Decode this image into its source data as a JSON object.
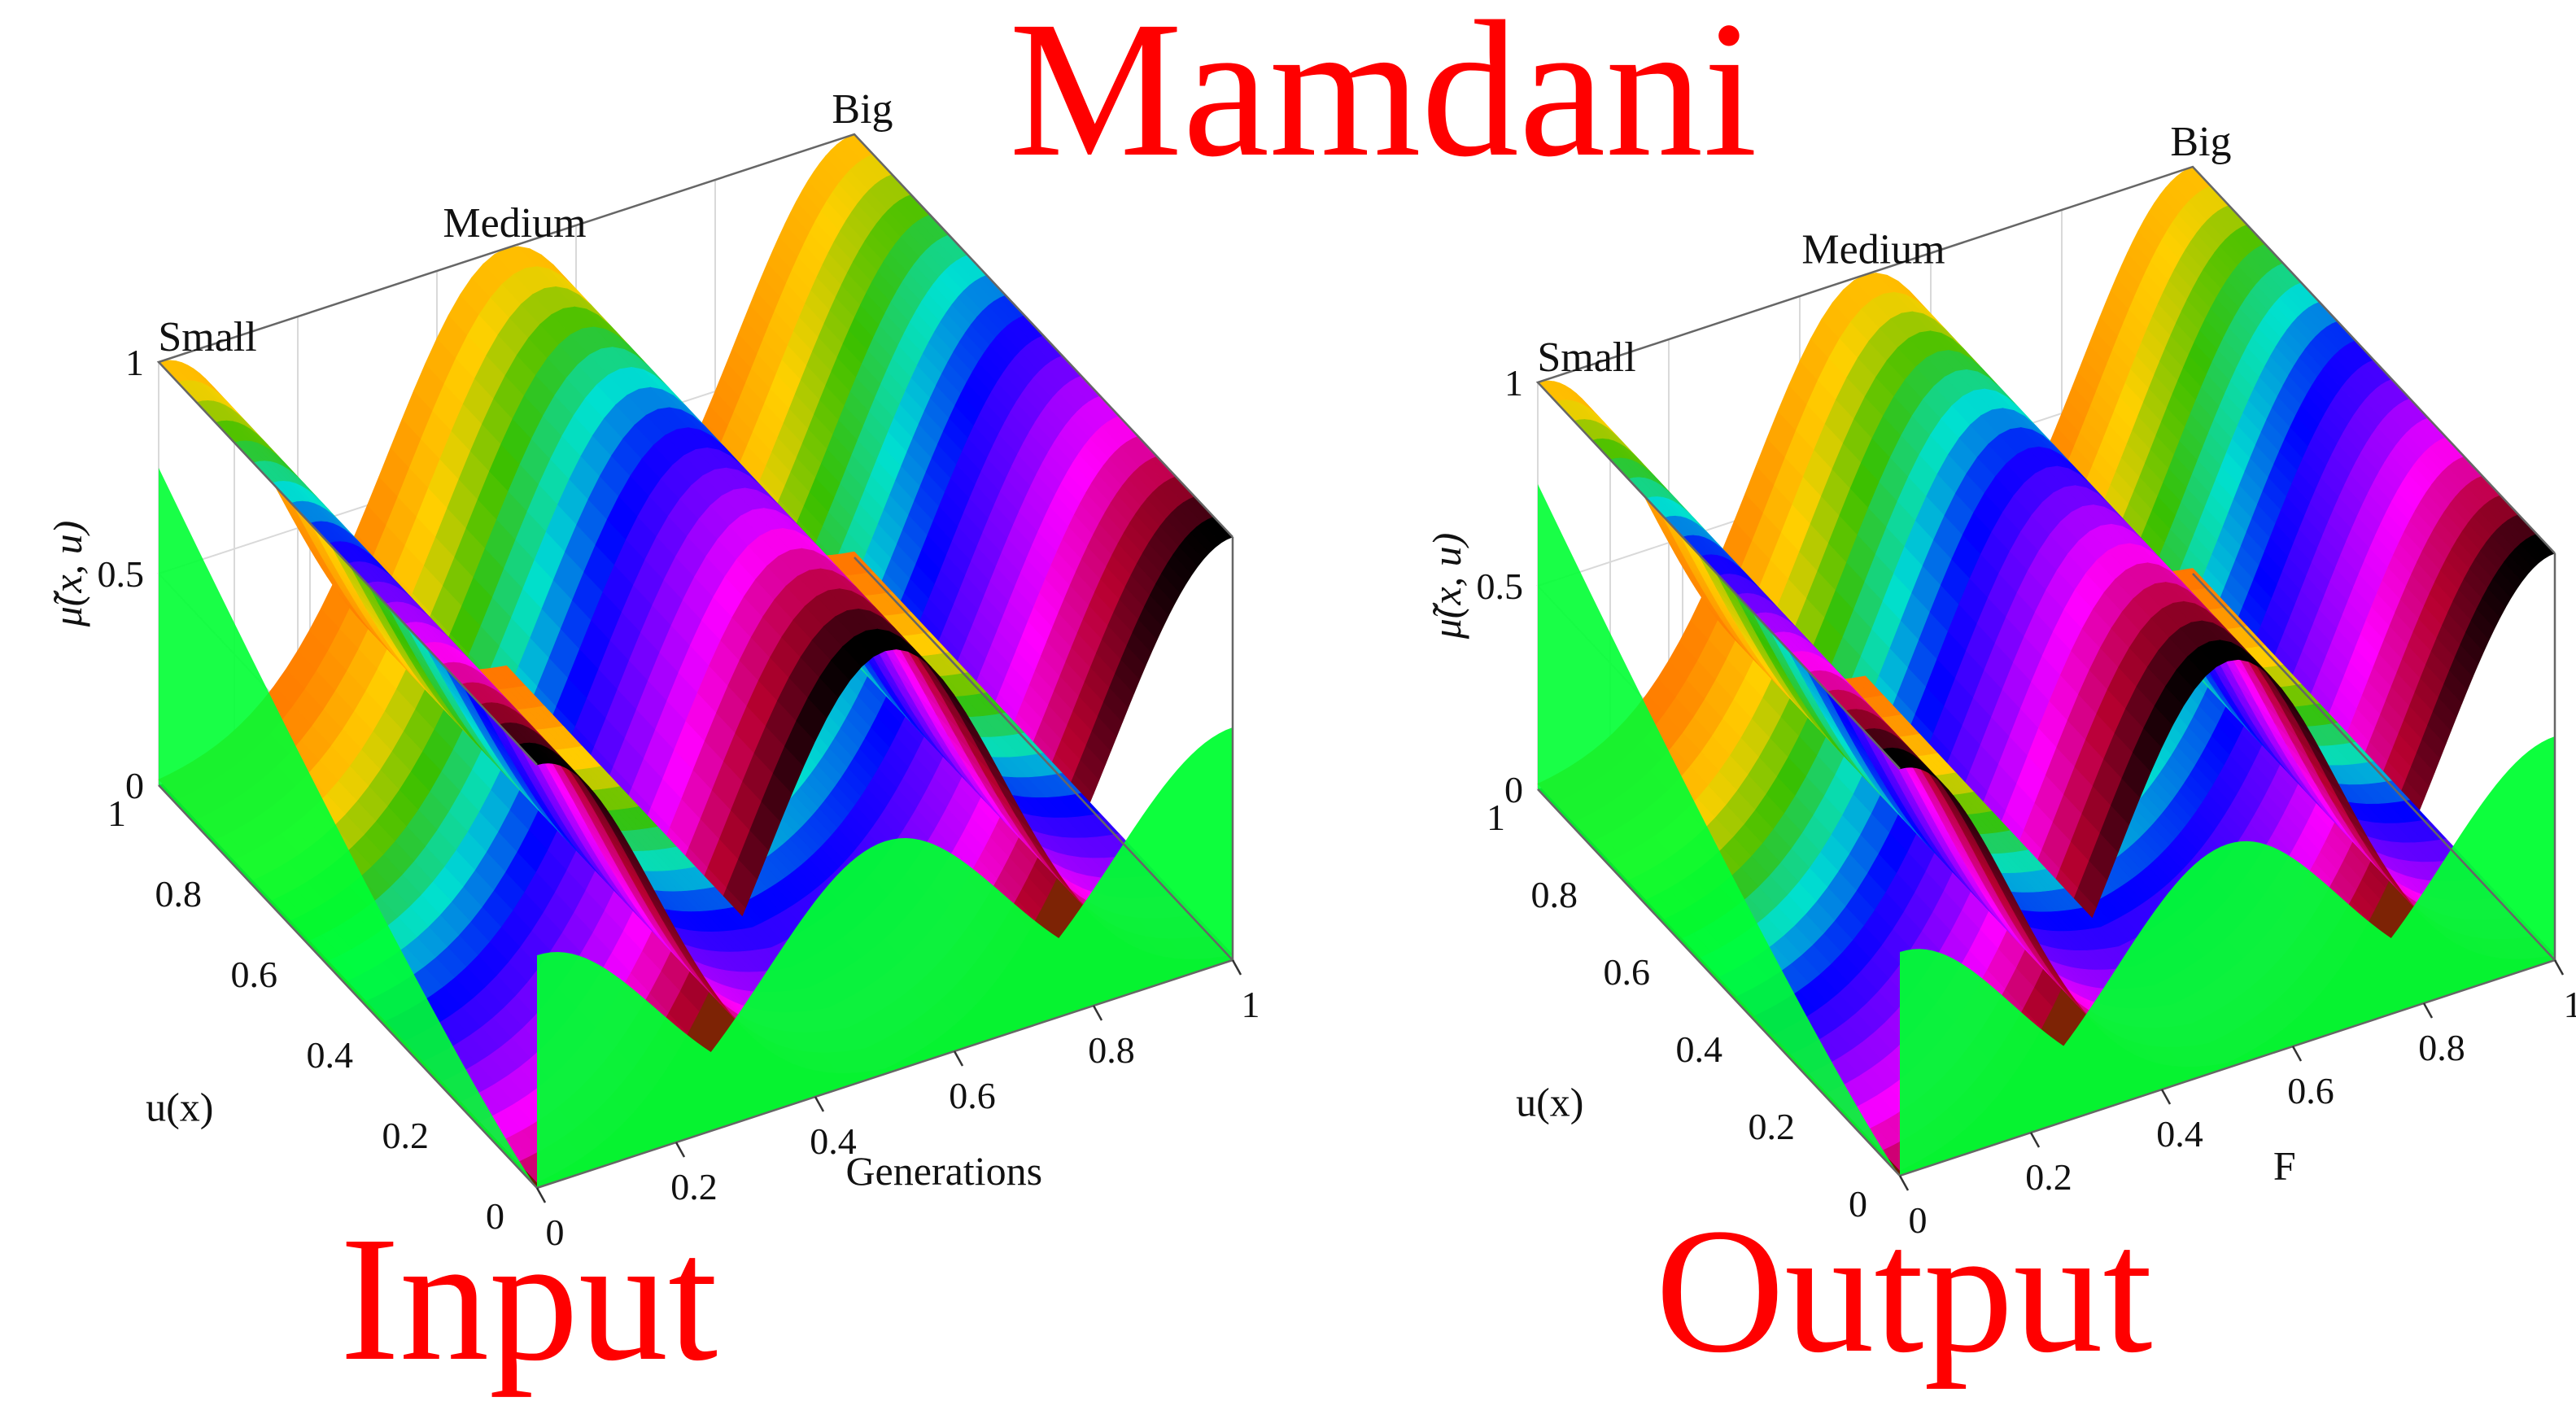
{
  "figure": {
    "title": "Mamdani",
    "title_color": "#ff0000",
    "label_color": "#ff0000"
  },
  "chart_data": [
    {
      "type": "surface",
      "caption": "Input",
      "xlabel": "Generations",
      "ylabel": "u(x)",
      "zlabel": "μ̃(x, u)",
      "xlim": [
        0,
        1
      ],
      "ylim": [
        0,
        1
      ],
      "zlim": [
        0,
        1
      ],
      "x_ticks": [
        "0",
        "0.2",
        "0.4",
        "0.6",
        "0.8",
        "1"
      ],
      "y_ticks": [
        "0",
        "0.2",
        "0.4",
        "0.6",
        "0.8",
        "1"
      ],
      "z_ticks": [
        "0",
        "0.5",
        "1"
      ],
      "sets": [
        {
          "name": "Small",
          "center": 0.0
        },
        {
          "name": "Medium",
          "center": 0.5
        },
        {
          "name": "Big",
          "center": 1.0
        }
      ],
      "grid": true,
      "colormap": [
        "#ff6a00",
        "#ff8c00",
        "#ffd000",
        "#39c000",
        "#00e0d0",
        "#0000ff",
        "#7a00ff",
        "#ff00ff",
        "#b80030",
        "#000000"
      ],
      "edge_color": "#00ff33"
    },
    {
      "type": "surface",
      "caption": "Output",
      "xlabel": "F",
      "ylabel": "u(x)",
      "zlabel": "μ̃(x, u)",
      "xlim": [
        0,
        1
      ],
      "ylim": [
        0,
        1
      ],
      "zlim": [
        0,
        1
      ],
      "x_ticks": [
        "0",
        "0.2",
        "0.4",
        "0.6",
        "0.8",
        "1"
      ],
      "y_ticks": [
        "0",
        "0.2",
        "0.4",
        "0.6",
        "0.8",
        "1"
      ],
      "z_ticks": [
        "0",
        "0.5",
        "1"
      ],
      "sets": [
        {
          "name": "Small",
          "center": 0.0
        },
        {
          "name": "Medium",
          "center": 0.5
        },
        {
          "name": "Big",
          "center": 1.0
        }
      ],
      "grid": true,
      "colormap": [
        "#ff6a00",
        "#ff8c00",
        "#ffd000",
        "#39c000",
        "#00e0d0",
        "#0000ff",
        "#7a00ff",
        "#ff00ff",
        "#b80030",
        "#000000"
      ],
      "edge_color": "#00ff33"
    }
  ]
}
